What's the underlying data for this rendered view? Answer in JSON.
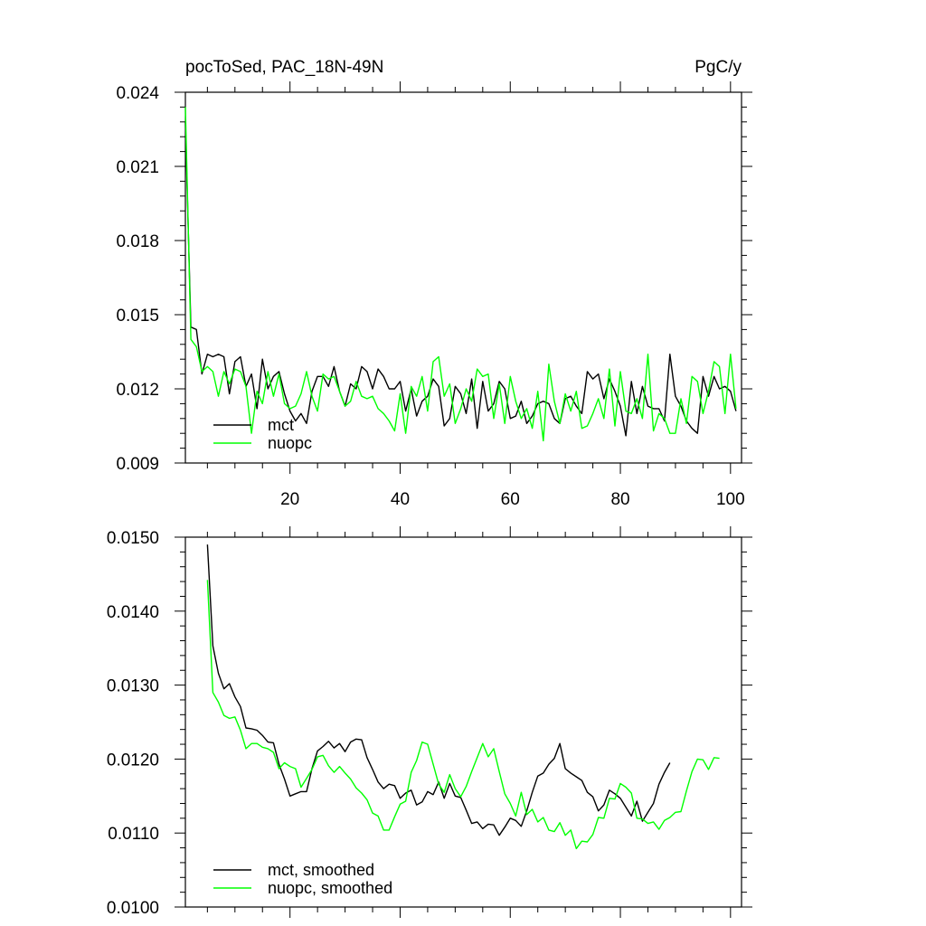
{
  "chart_data": [
    {
      "type": "line",
      "title": "pocToSed, PAC_18N-49N",
      "units": "PgC/y",
      "xlim": [
        1,
        102
      ],
      "ylim": [
        0.009,
        0.024
      ],
      "xticks": [
        20,
        40,
        60,
        80,
        100
      ],
      "xtick_labels": [
        "20",
        "40",
        "60",
        "80",
        "100"
      ],
      "yticks": [
        0.009,
        0.012,
        0.015,
        0.018,
        0.021,
        0.024
      ],
      "ytick_labels": [
        "0.009",
        "0.012",
        "0.015",
        "0.018",
        "0.021",
        "0.024"
      ],
      "legend_position": "bottom-left",
      "series": [
        {
          "name": "mct",
          "color": "#000000",
          "x0": 1,
          "values": [
            0.0228,
            0.0145,
            0.0144,
            0.0126,
            0.0134,
            0.0133,
            0.0134,
            0.0133,
            0.0118,
            0.0131,
            0.0133,
            0.0121,
            0.0126,
            0.0112,
            0.0132,
            0.012,
            0.0125,
            0.0127,
            0.0118,
            0.0111,
            0.0107,
            0.011,
            0.0106,
            0.0119,
            0.0125,
            0.0125,
            0.0121,
            0.0129,
            0.0119,
            0.0113,
            0.0122,
            0.012,
            0.0129,
            0.0127,
            0.012,
            0.0128,
            0.0125,
            0.012,
            0.012,
            0.0123,
            0.0111,
            0.012,
            0.0109,
            0.0115,
            0.0117,
            0.0124,
            0.0121,
            0.0105,
            0.0108,
            0.0121,
            0.0118,
            0.011,
            0.0124,
            0.0104,
            0.0123,
            0.0111,
            0.0114,
            0.0123,
            0.012,
            0.0108,
            0.0109,
            0.0115,
            0.0106,
            0.0109,
            0.0114,
            0.0115,
            0.0114,
            0.0108,
            0.0106,
            0.0116,
            0.0117,
            0.0113,
            0.011,
            0.0127,
            0.0124,
            0.0126,
            0.0116,
            0.0124,
            0.0119,
            0.0113,
            0.0101,
            0.0123,
            0.011,
            0.0121,
            0.0113,
            0.0112,
            0.0112,
            0.0107,
            0.0134,
            0.0117,
            0.0113,
            0.0107,
            0.0104,
            0.0102,
            0.0125,
            0.0117,
            0.0125,
            0.012,
            0.0121,
            0.0119,
            0.0111
          ]
        },
        {
          "name": "nuopc",
          "color": "#00ff00",
          "x0": 1,
          "values": [
            0.0234,
            0.014,
            0.0137,
            0.0127,
            0.0129,
            0.0127,
            0.0117,
            0.0127,
            0.0122,
            0.0128,
            0.0127,
            0.0121,
            0.0102,
            0.0119,
            0.0114,
            0.0127,
            0.0117,
            0.0126,
            0.0114,
            0.0112,
            0.0113,
            0.0118,
            0.0127,
            0.0117,
            0.0111,
            0.0126,
            0.0124,
            0.0125,
            0.0119,
            0.0113,
            0.0115,
            0.0123,
            0.0117,
            0.0116,
            0.0117,
            0.0112,
            0.011,
            0.0107,
            0.0103,
            0.0118,
            0.0102,
            0.0121,
            0.0117,
            0.0125,
            0.0111,
            0.0131,
            0.0133,
            0.0117,
            0.0122,
            0.0106,
            0.0112,
            0.012,
            0.0115,
            0.0128,
            0.0125,
            0.0126,
            0.0108,
            0.0122,
            0.0106,
            0.0125,
            0.0115,
            0.0108,
            0.0112,
            0.0104,
            0.0119,
            0.0099,
            0.013,
            0.0115,
            0.0106,
            0.0118,
            0.0111,
            0.0119,
            0.0104,
            0.0105,
            0.011,
            0.0116,
            0.0108,
            0.0128,
            0.0105,
            0.0127,
            0.0111,
            0.011,
            0.0116,
            0.0108,
            0.0134,
            0.0103,
            0.011,
            0.0108,
            0.0102,
            0.0102,
            0.0116,
            0.0106,
            0.0125,
            0.0123,
            0.011,
            0.0119,
            0.0131,
            0.0129,
            0.011,
            0.0134,
            0.0112
          ]
        }
      ]
    },
    {
      "type": "line",
      "title": "",
      "xlim": [
        1,
        102
      ],
      "ylim": [
        0.01,
        0.015
      ],
      "xticks": [
        20,
        40,
        60,
        80,
        100
      ],
      "xtick_labels": [],
      "yticks": [
        0.01,
        0.011,
        0.012,
        0.013,
        0.014,
        0.015
      ],
      "ytick_labels": [
        "0.0100",
        "0.0110",
        "0.0120",
        "0.0130",
        "0.0140",
        "0.0150"
      ],
      "legend_position": "bottom-left",
      "series": [
        {
          "name": "mct, smoothed",
          "color": "#000000",
          "x0": 5,
          "values": [
            0.0149,
            0.01353,
            0.01316,
            0.01295,
            0.01302,
            0.01284,
            0.01271,
            0.01242,
            0.01241,
            0.01239,
            0.01232,
            0.01223,
            0.01222,
            0.01193,
            0.01173,
            0.0115,
            0.01153,
            0.01156,
            0.01156,
            0.01187,
            0.01211,
            0.01217,
            0.01224,
            0.01215,
            0.01221,
            0.0121,
            0.01223,
            0.01227,
            0.01226,
            0.01202,
            0.01186,
            0.01169,
            0.0116,
            0.01166,
            0.01164,
            0.01147,
            0.01154,
            0.01158,
            0.01138,
            0.01142,
            0.01156,
            0.01152,
            0.01169,
            0.01147,
            0.01167,
            0.0115,
            0.01148,
            0.01131,
            0.01113,
            0.01115,
            0.01106,
            0.01112,
            0.01111,
            0.01097,
            0.01108,
            0.0112,
            0.01117,
            0.01109,
            0.0113,
            0.01155,
            0.01177,
            0.01181,
            0.01193,
            0.01201,
            0.01221,
            0.01187,
            0.01181,
            0.01176,
            0.01171,
            0.01155,
            0.01149,
            0.0113,
            0.01138,
            0.01158,
            0.01153,
            0.01147,
            0.01135,
            0.01123,
            0.01143,
            0.01116,
            0.01128,
            0.0114,
            0.01166,
            0.01182,
            0.01195
          ]
        },
        {
          "name": "nuopc, smoothed",
          "color": "#00ff00",
          "x0": 5,
          "values": [
            0.01442,
            0.0129,
            0.01277,
            0.01259,
            0.01255,
            0.01257,
            0.01239,
            0.01214,
            0.01221,
            0.01221,
            0.01216,
            0.01214,
            0.01209,
            0.01187,
            0.01195,
            0.0119,
            0.01187,
            0.01162,
            0.01174,
            0.01186,
            0.01203,
            0.01205,
            0.01191,
            0.01182,
            0.0119,
            0.01181,
            0.01173,
            0.01161,
            0.01154,
            0.01145,
            0.01127,
            0.01123,
            0.01104,
            0.01104,
            0.01122,
            0.01139,
            0.01143,
            0.01182,
            0.01198,
            0.01223,
            0.0122,
            0.01193,
            0.01166,
            0.01155,
            0.01179,
            0.0116,
            0.01149,
            0.01163,
            0.01183,
            0.01202,
            0.01221,
            0.01203,
            0.01214,
            0.01183,
            0.01153,
            0.0114,
            0.01123,
            0.01155,
            0.01125,
            0.01132,
            0.01115,
            0.01121,
            0.01104,
            0.01102,
            0.01114,
            0.01097,
            0.01104,
            0.01079,
            0.01089,
            0.01088,
            0.01098,
            0.01121,
            0.0112,
            0.01147,
            0.01146,
            0.01167,
            0.01162,
            0.01154,
            0.0112,
            0.01119,
            0.01113,
            0.01115,
            0.01105,
            0.01117,
            0.01121,
            0.01128,
            0.01129,
            0.01157,
            0.01183,
            0.012,
            0.01199,
            0.01186,
            0.01202,
            0.01201
          ]
        }
      ]
    }
  ]
}
